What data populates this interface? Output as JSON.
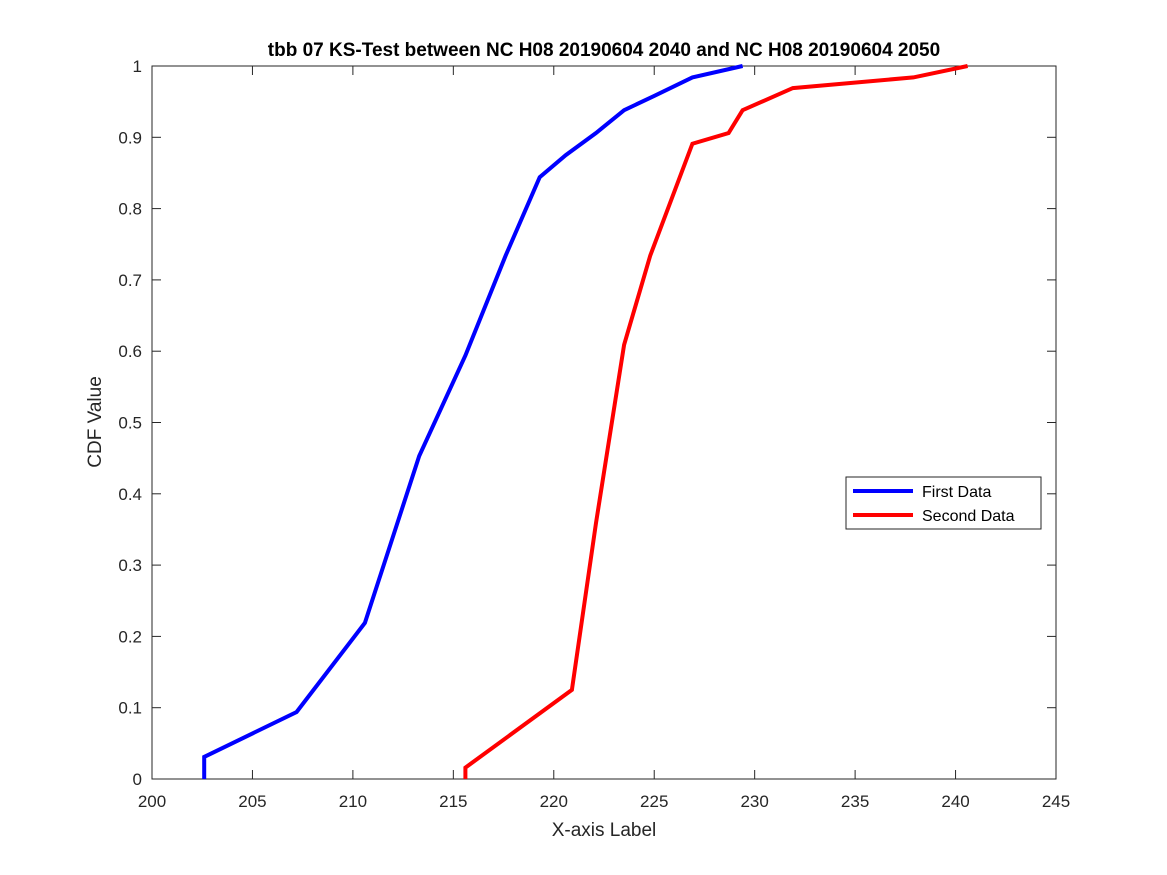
{
  "chart_data": {
    "type": "line",
    "title": "tbb 07 KS-Test between NC H08 20190604 2040 and NC H08 20190604 2050",
    "xlabel": "X-axis Label",
    "ylabel": "CDF Value",
    "xlim": [
      200,
      245
    ],
    "ylim": [
      0,
      1
    ],
    "xticks": [
      200,
      205,
      210,
      215,
      220,
      225,
      230,
      235,
      240,
      245
    ],
    "xtick_labels": [
      "200",
      "205",
      "210",
      "215",
      "220",
      "225",
      "230",
      "235",
      "240",
      "245"
    ],
    "yticks": [
      0,
      0.1,
      0.2,
      0.3,
      0.4,
      0.5,
      0.6,
      0.7,
      0.8,
      0.9,
      1
    ],
    "ytick_labels": [
      "0",
      "0.1",
      "0.2",
      "0.3",
      "0.4",
      "0.5",
      "0.6",
      "0.7",
      "0.8",
      "0.9",
      "1"
    ],
    "grid": false,
    "legend_position": "right",
    "series": [
      {
        "name": "First Data",
        "color": "#0000ff",
        "x": [
          202.6,
          202.6,
          207.2,
          210.6,
          213.3,
          215.6,
          217.6,
          219.3,
          220.6,
          222.1,
          223.5,
          225.0,
          226.9,
          229.4
        ],
        "y": [
          0,
          0.031,
          0.094,
          0.219,
          0.453,
          0.594,
          0.734,
          0.844,
          0.875,
          0.906,
          0.938,
          0.958,
          0.984,
          1.0
        ]
      },
      {
        "name": "Second Data",
        "color": "#ff0000",
        "x": [
          215.6,
          215.6,
          220.9,
          222.1,
          223.5,
          224.8,
          226.9,
          228.7,
          229.4,
          231.9,
          237.9,
          240.6
        ],
        "y": [
          0,
          0.016,
          0.125,
          0.359,
          0.609,
          0.734,
          0.891,
          0.906,
          0.938,
          0.969,
          0.984,
          1.0
        ]
      }
    ]
  }
}
